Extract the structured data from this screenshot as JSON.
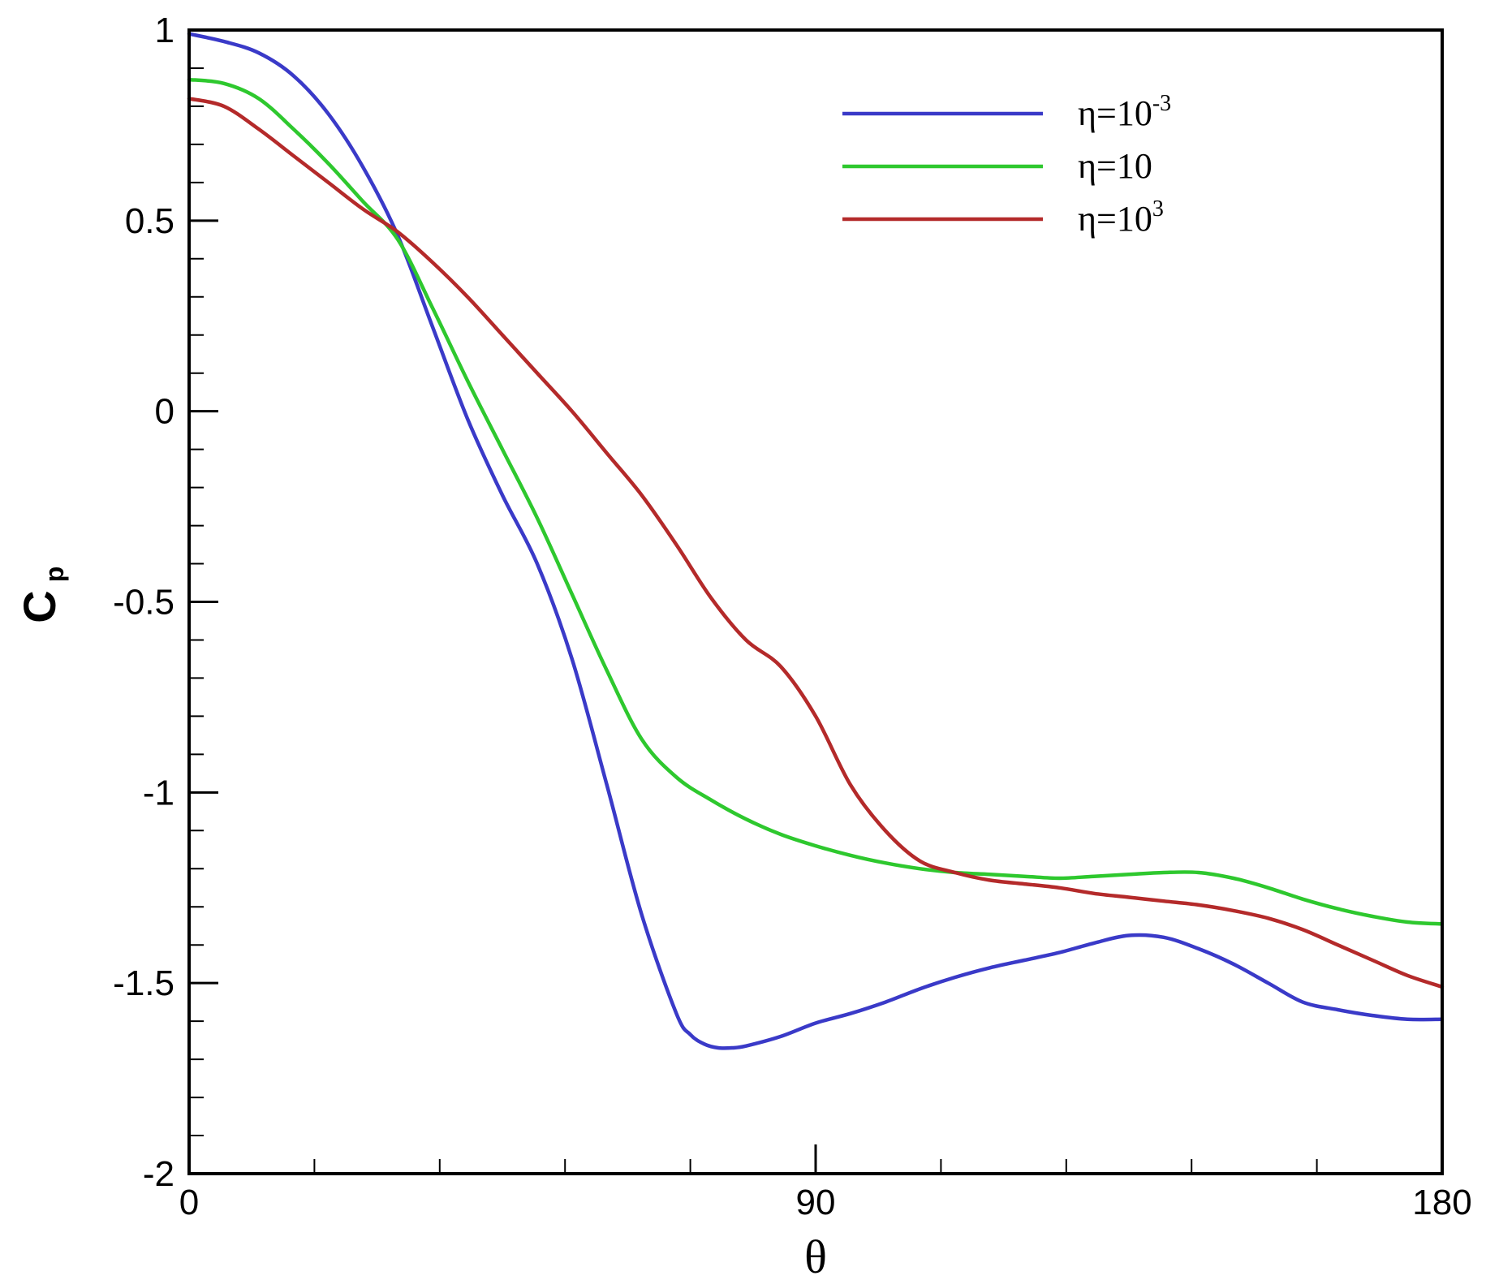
{
  "chart_data": {
    "type": "line",
    "xlabel": "θ",
    "ylabel": "C",
    "ylabel_sub": "p",
    "xlim": [
      0,
      180
    ],
    "ylim": [
      -2,
      1
    ],
    "xticks": [
      0,
      90,
      180
    ],
    "yticks": [
      -2,
      -1.5,
      -1,
      -0.5,
      0,
      0.5,
      1
    ],
    "xtick_labels": [
      "0",
      "90",
      "180"
    ],
    "ytick_labels": [
      "-2",
      "-1.5",
      "-1",
      "-0.5",
      "0",
      "0.5",
      "1"
    ],
    "x_minor_step": 18,
    "y_minor_step": 0.1,
    "grid": false,
    "legend_position": "top-right",
    "series": [
      {
        "name": "η=10",
        "name_sup": "-3",
        "color": "#3a3ac8",
        "x": [
          0,
          5,
          10,
          15,
          20,
          25,
          30,
          35,
          40,
          45,
          50,
          55,
          60,
          65,
          70,
          72,
          74,
          76,
          78,
          80,
          85,
          90,
          95,
          100,
          105,
          110,
          115,
          120,
          125,
          130,
          135,
          140,
          145,
          150,
          155,
          160,
          165,
          170,
          175,
          180
        ],
        "y": [
          0.99,
          0.97,
          0.94,
          0.88,
          0.78,
          0.64,
          0.46,
          0.22,
          -0.02,
          -0.22,
          -0.4,
          -0.65,
          -0.98,
          -1.32,
          -1.58,
          -1.635,
          -1.66,
          -1.67,
          -1.67,
          -1.665,
          -1.64,
          -1.605,
          -1.58,
          -1.55,
          -1.515,
          -1.485,
          -1.46,
          -1.44,
          -1.42,
          -1.395,
          -1.375,
          -1.38,
          -1.41,
          -1.45,
          -1.5,
          -1.55,
          -1.57,
          -1.585,
          -1.595,
          -1.595
        ]
      },
      {
        "name": "η=10",
        "name_sup": "",
        "color": "#2ec82e",
        "x": [
          0,
          5,
          10,
          15,
          20,
          25,
          30,
          35,
          40,
          45,
          50,
          55,
          60,
          65,
          70,
          75,
          80,
          85,
          90,
          95,
          100,
          105,
          110,
          115,
          120,
          125,
          130,
          135,
          140,
          145,
          150,
          155,
          160,
          165,
          170,
          175,
          180
        ],
        "y": [
          0.87,
          0.86,
          0.82,
          0.74,
          0.65,
          0.55,
          0.45,
          0.27,
          0.08,
          -0.1,
          -0.28,
          -0.48,
          -0.68,
          -0.86,
          -0.96,
          -1.02,
          -1.07,
          -1.11,
          -1.14,
          -1.165,
          -1.185,
          -1.2,
          -1.21,
          -1.215,
          -1.22,
          -1.225,
          -1.22,
          -1.215,
          -1.21,
          -1.21,
          -1.225,
          -1.25,
          -1.28,
          -1.305,
          -1.325,
          -1.34,
          -1.345
        ]
      },
      {
        "name": "η=10",
        "name_sup": "3",
        "color": "#b42a2a",
        "x": [
          0,
          5,
          10,
          15,
          20,
          25,
          30,
          35,
          40,
          45,
          50,
          55,
          60,
          65,
          70,
          75,
          80,
          85,
          90,
          95,
          100,
          105,
          110,
          115,
          120,
          125,
          130,
          135,
          140,
          145,
          150,
          155,
          160,
          165,
          170,
          175,
          180
        ],
        "y": [
          0.82,
          0.8,
          0.74,
          0.67,
          0.6,
          0.53,
          0.47,
          0.39,
          0.3,
          0.2,
          0.1,
          0.0,
          -0.11,
          -0.22,
          -0.35,
          -0.49,
          -0.6,
          -0.67,
          -0.8,
          -0.98,
          -1.1,
          -1.18,
          -1.21,
          -1.23,
          -1.24,
          -1.25,
          -1.265,
          -1.275,
          -1.285,
          -1.295,
          -1.31,
          -1.33,
          -1.36,
          -1.4,
          -1.44,
          -1.48,
          -1.51
        ]
      }
    ]
  }
}
